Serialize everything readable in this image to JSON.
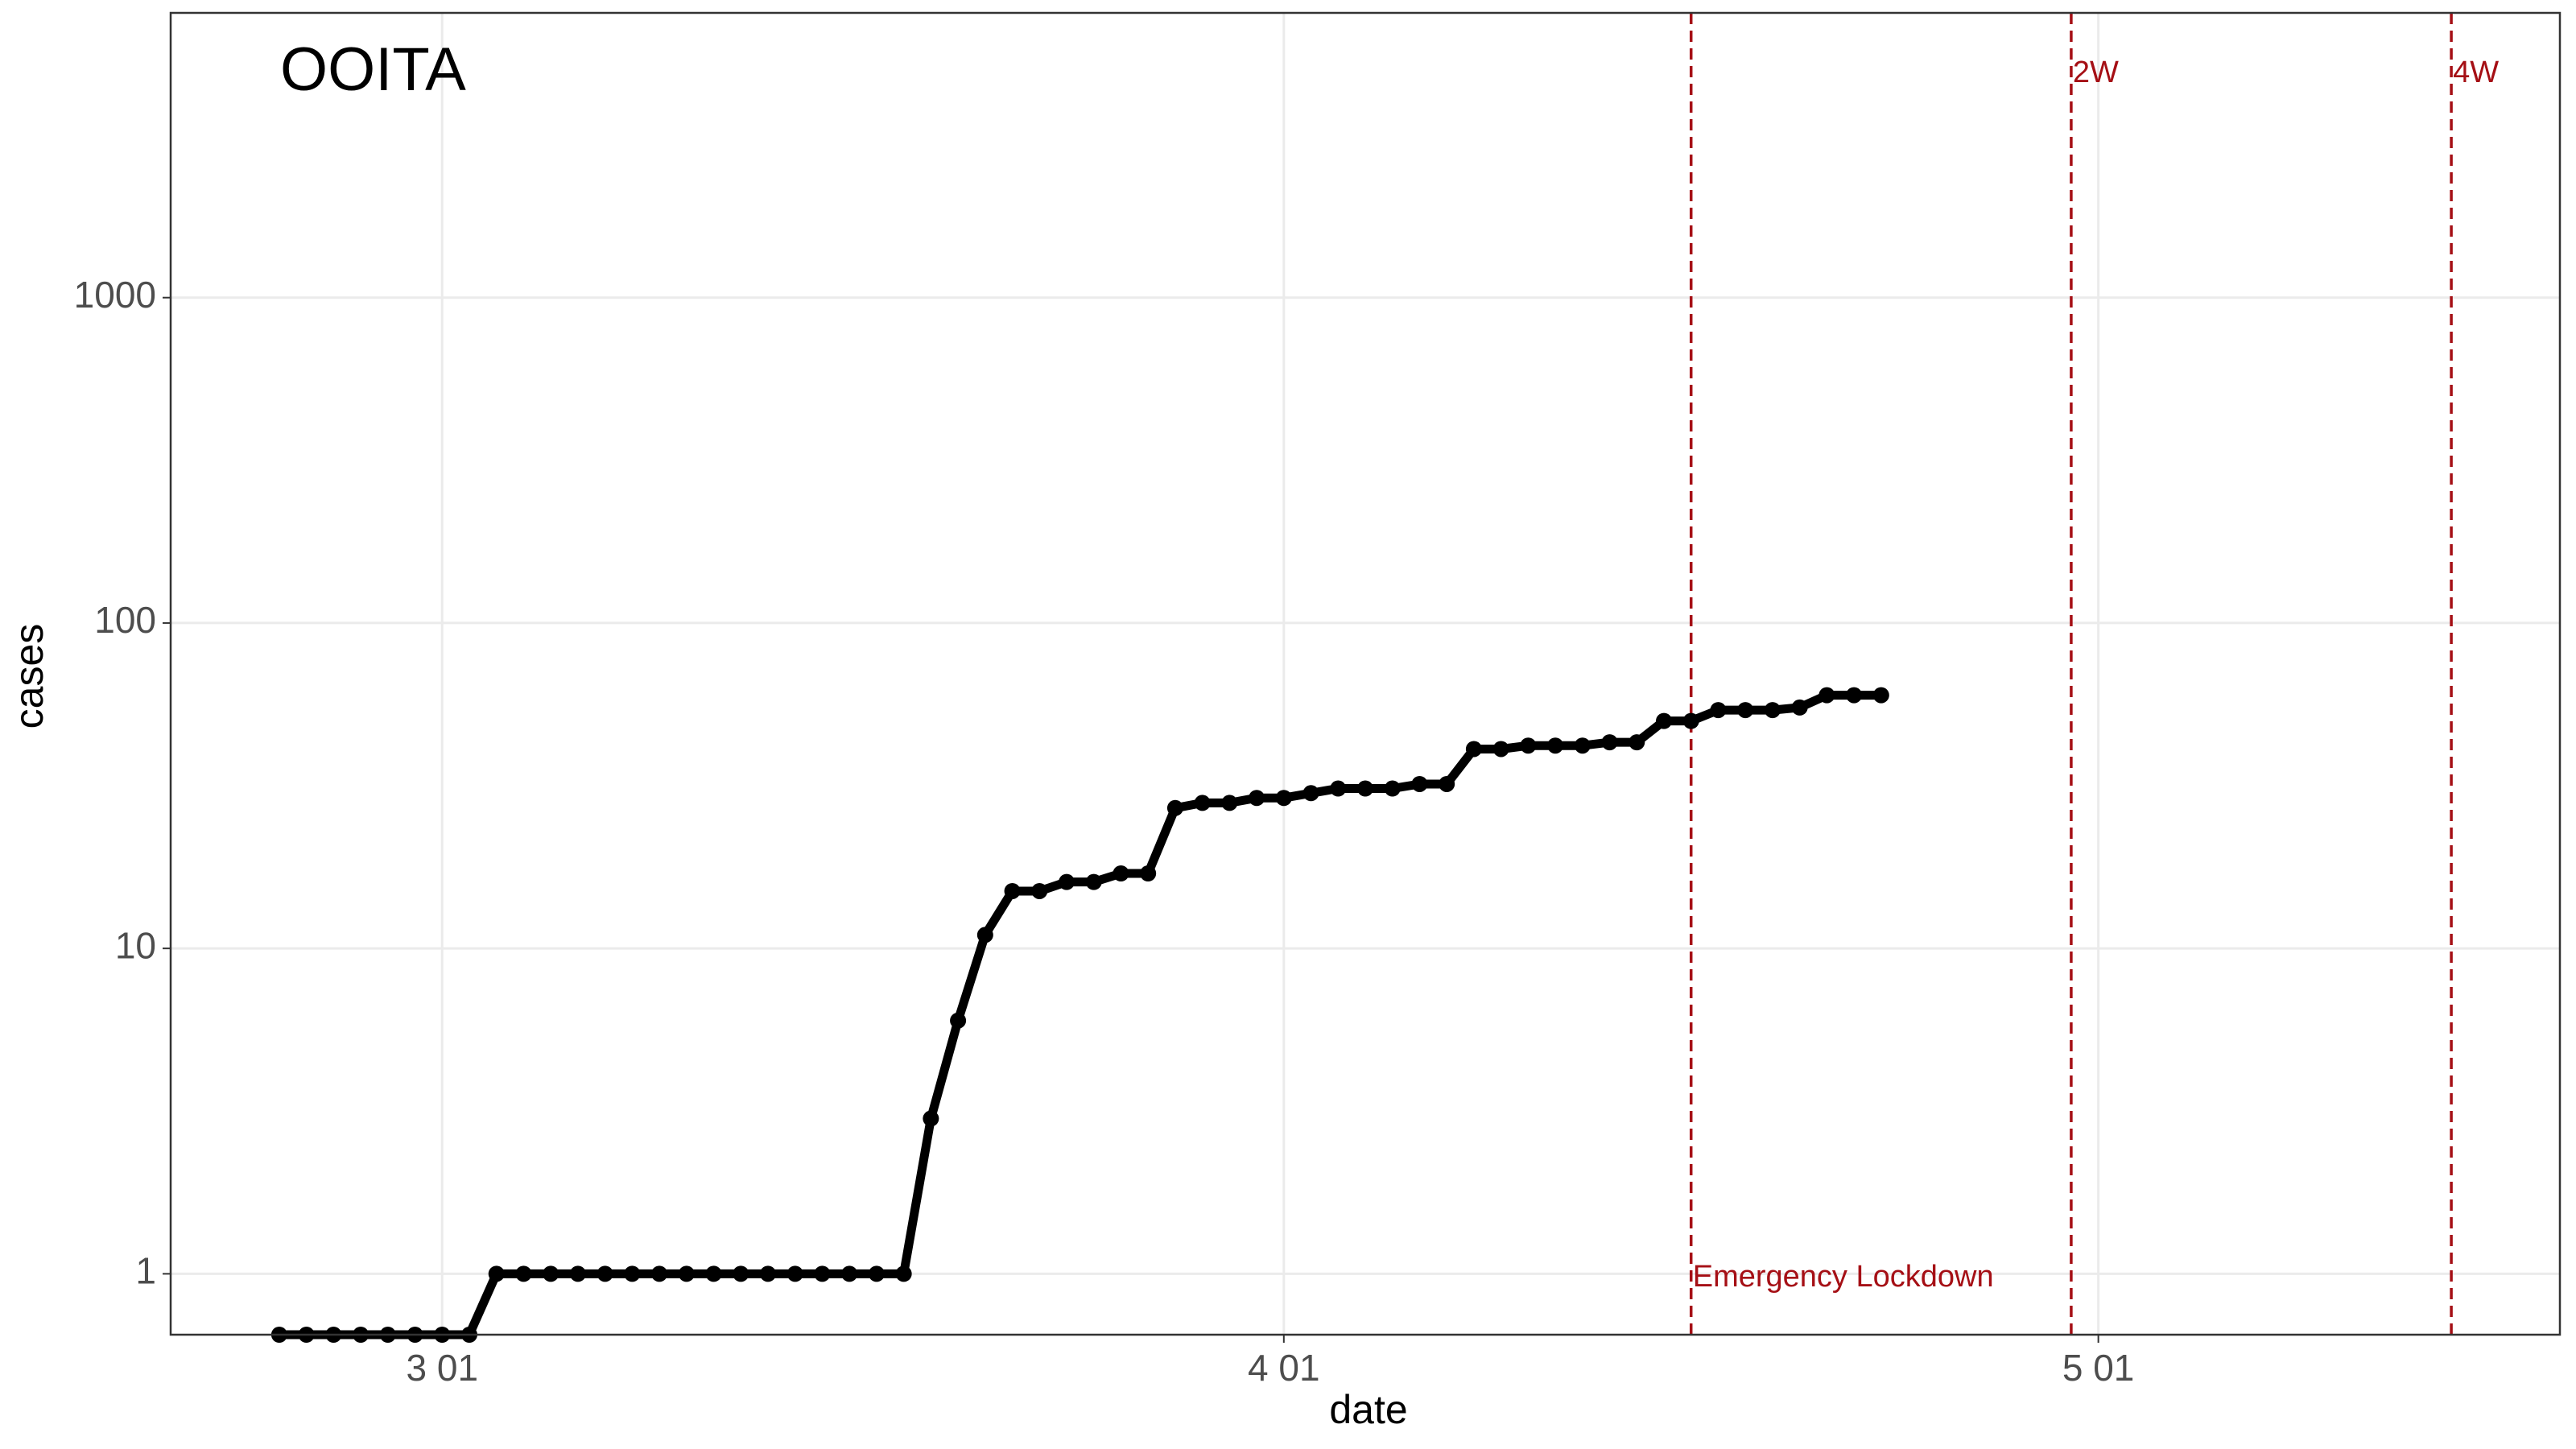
{
  "chart_data": {
    "type": "line",
    "title": "OOITA",
    "x_label": "date",
    "y_label": "cases",
    "x": [
      "02-24",
      "02-25",
      "02-26",
      "02-27",
      "02-28",
      "02-29",
      "03-01",
      "03-02",
      "03-03",
      "03-04",
      "03-05",
      "03-06",
      "03-07",
      "03-08",
      "03-09",
      "03-10",
      "03-11",
      "03-12",
      "03-13",
      "03-14",
      "03-15",
      "03-16",
      "03-17",
      "03-18",
      "03-19",
      "03-20",
      "03-21",
      "03-22",
      "03-23",
      "03-24",
      "03-25",
      "03-26",
      "03-27",
      "03-28",
      "03-29",
      "03-30",
      "03-31",
      "04-01",
      "04-02",
      "04-03",
      "04-04",
      "04-05",
      "04-06",
      "04-07",
      "04-08",
      "04-09",
      "04-10",
      "04-11",
      "04-12",
      "04-13",
      "04-14",
      "04-15",
      "04-16",
      "04-17",
      "04-18",
      "04-19",
      "04-20",
      "04-21",
      "04-22",
      "04-23"
    ],
    "values": [
      0.65,
      0.65,
      0.65,
      0.65,
      0.65,
      0.65,
      0.65,
      0.65,
      1,
      1,
      1,
      1,
      1,
      1,
      1,
      1,
      1,
      1,
      1,
      1,
      1,
      1,
      1,
      1,
      3,
      6,
      11,
      15,
      15,
      16,
      16,
      17,
      17,
      27,
      28,
      28,
      29,
      29,
      30,
      31,
      31,
      31,
      32,
      32,
      41,
      41,
      42,
      42,
      42,
      43,
      43,
      50,
      50,
      54,
      54,
      54,
      55,
      60,
      60,
      60
    ],
    "color": "#000000",
    "xlim": [
      "02-20",
      "05-18"
    ],
    "xticks": [
      {
        "value": "03-01",
        "label": "3 01"
      },
      {
        "value": "04-01",
        "label": "4 01"
      },
      {
        "value": "05-01",
        "label": "5 01"
      }
    ],
    "ylim": [
      0.65,
      7500
    ],
    "yticks": [
      1,
      10,
      100,
      1000
    ],
    "log_y": true,
    "grid": true,
    "vlines": [
      {
        "x": "04-16",
        "label": "Emergency Lockdown",
        "color": "#a50f15"
      },
      {
        "x": "04-30",
        "label": "2W",
        "color": "#a50f15"
      },
      {
        "x": "05-14",
        "label": "4W",
        "color": "#a50f15"
      }
    ]
  }
}
